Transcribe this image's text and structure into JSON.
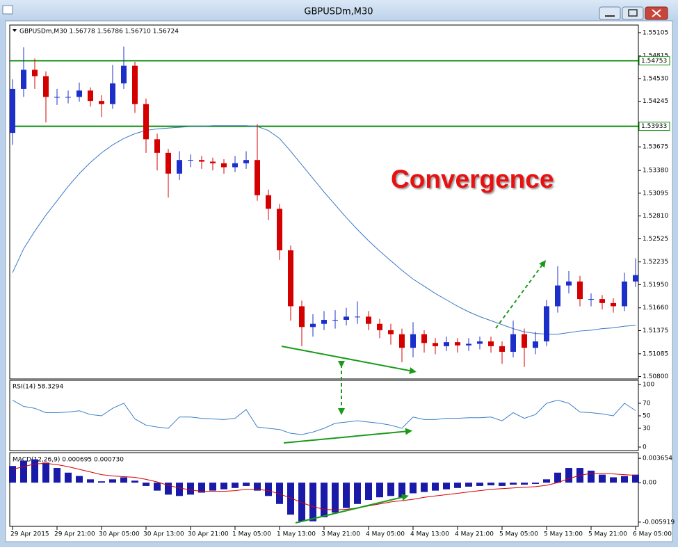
{
  "window_title": "GBPUSDm,M30",
  "chart_data": [
    {
      "type": "candlestick",
      "title": "GBPUSDm,M30  1.56778 1.56786 1.56710 1.56724",
      "annotation": "Convergence",
      "categories": [
        "29 Apr 2015",
        null,
        null,
        null,
        "29 Apr 21:00",
        null,
        null,
        null,
        "30 Apr 05:00",
        null,
        null,
        null,
        "30 Apr 13:00",
        null,
        null,
        null,
        "30 Apr 21:00",
        null,
        null,
        null,
        "1 May 05:00",
        null,
        null,
        null,
        "1 May 13:00",
        null,
        null,
        null,
        "3 May 21:00",
        null,
        null,
        null,
        "4 May 05:00",
        null,
        null,
        null,
        "4 May 13:00",
        null,
        null,
        null,
        "4 May 21:00",
        null,
        null,
        null,
        "5 May 05:00",
        null,
        null,
        null,
        "5 May 13:00",
        null,
        null,
        null,
        "5 May 21:00",
        null,
        null,
        null,
        "6 May 05:00"
      ],
      "open": [
        1.5385,
        1.544,
        1.5464,
        1.5456,
        1.543,
        1.543,
        1.543,
        1.5438,
        1.5425,
        1.5421,
        1.5447,
        1.5469,
        1.5421,
        1.5377,
        1.536,
        1.5334,
        1.5351,
        1.5351,
        1.5349,
        1.5347,
        1.5342,
        1.5347,
        1.5351,
        1.5307,
        1.529,
        1.5238,
        1.5168,
        1.5142,
        1.5146,
        1.5151,
        1.5151,
        1.5155,
        1.5155,
        1.5146,
        1.5138,
        1.5133,
        1.5116,
        1.5133,
        1.5122,
        1.5118,
        1.5123,
        1.5119,
        1.5121,
        1.5124,
        1.5118,
        1.5111,
        1.5133,
        1.5116,
        1.5124,
        1.5168,
        1.5194,
        1.5199,
        1.5177,
        1.5177,
        1.5172,
        1.5168,
        1.5199
      ],
      "high": [
        1.5452,
        1.5492,
        1.5478,
        1.5462,
        1.544,
        1.5438,
        1.5448,
        1.5442,
        1.5432,
        1.547,
        1.5493,
        1.5474,
        1.5428,
        1.5384,
        1.5365,
        1.5362,
        1.5358,
        1.5356,
        1.5354,
        1.5352,
        1.5356,
        1.5362,
        1.5396,
        1.5314,
        1.5296,
        1.5244,
        1.5175,
        1.5158,
        1.5162,
        1.5163,
        1.5166,
        1.5174,
        1.5162,
        1.5152,
        1.5146,
        1.514,
        1.5148,
        1.5138,
        1.5128,
        1.513,
        1.5128,
        1.5128,
        1.513,
        1.513,
        1.5124,
        1.515,
        1.514,
        1.5136,
        1.5176,
        1.5218,
        1.5212,
        1.5206,
        1.5184,
        1.5182,
        1.5178,
        1.521,
        1.5228
      ],
      "low": [
        1.537,
        1.543,
        1.544,
        1.5398,
        1.542,
        1.5422,
        1.5424,
        1.5418,
        1.5405,
        1.5415,
        1.544,
        1.541,
        1.536,
        1.5338,
        1.5304,
        1.5326,
        1.5342,
        1.534,
        1.5338,
        1.5334,
        1.5336,
        1.534,
        1.53,
        1.5276,
        1.5226,
        1.515,
        1.5118,
        1.513,
        1.5138,
        1.514,
        1.5144,
        1.5146,
        1.5138,
        1.5128,
        1.512,
        1.5098,
        1.5104,
        1.511,
        1.5108,
        1.5112,
        1.511,
        1.5112,
        1.5114,
        1.511,
        1.5096,
        1.5104,
        1.5092,
        1.5108,
        1.5118,
        1.516,
        1.5184,
        1.5168,
        1.5168,
        1.5164,
        1.516,
        1.5162,
        1.5192
      ],
      "close": [
        1.544,
        1.5464,
        1.5456,
        1.543,
        1.543,
        1.543,
        1.5438,
        1.5425,
        1.5421,
        1.5447,
        1.5469,
        1.5421,
        1.5377,
        1.536,
        1.5334,
        1.5351,
        1.5351,
        1.5349,
        1.5347,
        1.5342,
        1.5347,
        1.5351,
        1.5307,
        1.529,
        1.5238,
        1.5168,
        1.5142,
        1.5146,
        1.5151,
        1.5151,
        1.5155,
        1.5155,
        1.5146,
        1.5138,
        1.5133,
        1.5116,
        1.5133,
        1.5122,
        1.5118,
        1.5123,
        1.5119,
        1.5121,
        1.5124,
        1.5118,
        1.5111,
        1.5133,
        1.5116,
        1.5124,
        1.5168,
        1.5194,
        1.5199,
        1.5177,
        1.5177,
        1.5172,
        1.5168,
        1.5199,
        1.5207
      ],
      "up_color": "#1c2fc8",
      "down_color": "#d40000",
      "moving_average": {
        "color": "#3b78c4",
        "values": [
          1.521,
          1.524,
          1.5262,
          1.5282,
          1.53,
          1.5318,
          1.5334,
          1.5348,
          1.536,
          1.537,
          1.5378,
          1.5384,
          1.5388,
          1.539,
          1.5391,
          1.5392,
          1.5393,
          1.5393,
          1.5394,
          1.5394,
          1.5394,
          1.5394,
          1.5393,
          1.5388,
          1.5378,
          1.5362,
          1.5345,
          1.5328,
          1.5311,
          1.5295,
          1.5279,
          1.5264,
          1.525,
          1.5237,
          1.5225,
          1.5213,
          1.5202,
          1.5193,
          1.5184,
          1.5176,
          1.5168,
          1.5161,
          1.5155,
          1.515,
          1.5145,
          1.514,
          1.5136,
          1.5134,
          1.5133,
          1.5133,
          1.5135,
          1.5137,
          1.5138,
          1.514,
          1.5141,
          1.5143,
          1.5144
        ]
      },
      "levels": [
        1.54753,
        1.53933
      ],
      "level_color": "#0a8a0a",
      "ylim": [
        1.5077,
        1.552
      ],
      "yticks": [
        1.55105,
        1.54815,
        {
          "value": 1.5453,
          "label": "1.54530"
        },
        1.54245,
        1.53675,
        {
          "value": 1.5338,
          "label": "1.53380"
        },
        1.53095,
        {
          "value": 1.5281,
          "label": "1.52810"
        },
        1.52525,
        1.52235,
        {
          "value": 1.5195,
          "label": "1.51950"
        },
        {
          "value": 1.5166,
          "label": "1.51660"
        },
        1.51375,
        1.51085,
        {
          "value": 1.508,
          "label": "1.50800"
        }
      ]
    },
    {
      "type": "line",
      "title": "RSI(14) 58.3294",
      "color": "#3d7fc8",
      "values": [
        75,
        65,
        62,
        55,
        55,
        56,
        58,
        52,
        50,
        62,
        70,
        45,
        35,
        32,
        30,
        48,
        48,
        46,
        45,
        44,
        46,
        60,
        32,
        30,
        28,
        22,
        20,
        24,
        30,
        38,
        40,
        42,
        40,
        38,
        35,
        30,
        48,
        44,
        44,
        46,
        46,
        47,
        47,
        48,
        42,
        55,
        46,
        52,
        70,
        75,
        70,
        56,
        55,
        53,
        50,
        70,
        58.33
      ],
      "ylim": [
        -5.6,
        106.7
      ],
      "yticks": [
        100,
        70,
        50,
        30,
        0
      ]
    },
    {
      "type": "bar",
      "title": "MACD(12,26,9) 0.000695 0.000730",
      "color": "#1a1aa8",
      "values": [
        0.0025,
        0.0033,
        0.0035,
        0.003,
        0.0022,
        0.0015,
        0.001,
        0.0005,
        0.0002,
        0.0005,
        0.0008,
        0.0003,
        -0.0005,
        -0.0012,
        -0.0018,
        -0.002,
        -0.0018,
        -0.0015,
        -0.0012,
        -0.001,
        -0.0008,
        -0.0005,
        -0.0012,
        -0.002,
        -0.0032,
        -0.0048,
        -0.0058,
        -0.0058,
        -0.0052,
        -0.0045,
        -0.0038,
        -0.0032,
        -0.0026,
        -0.0022,
        -0.002,
        -0.0022,
        -0.0016,
        -0.0014,
        -0.0012,
        -0.001,
        -0.0008,
        -0.0006,
        -0.0005,
        -0.0004,
        -0.0005,
        -0.0003,
        -0.0003,
        -0.0002,
        0.0005,
        0.0015,
        0.0022,
        0.0022,
        0.0018,
        0.0012,
        0.0008,
        0.001,
        0.0012
      ],
      "signal": {
        "color": "#d40000",
        "values": [
          0.002,
          0.0024,
          0.0028,
          0.0029,
          0.0027,
          0.0024,
          0.002,
          0.0016,
          0.0012,
          0.001,
          0.0009,
          0.0008,
          0.0005,
          0.0001,
          -0.0004,
          -0.0008,
          -0.0011,
          -0.0013,
          -0.0013,
          -0.0013,
          -0.0012,
          -0.001,
          -0.001,
          -0.0012,
          -0.0017,
          -0.0023,
          -0.003,
          -0.0036,
          -0.004,
          -0.0041,
          -0.004,
          -0.0038,
          -0.0035,
          -0.0032,
          -0.0029,
          -0.0027,
          -0.0025,
          -0.0022,
          -0.002,
          -0.0018,
          -0.0016,
          -0.0014,
          -0.0012,
          -0.001,
          -0.0009,
          -0.0008,
          -0.0007,
          -0.0006,
          -0.0004,
          0.0,
          0.0006,
          0.0011,
          0.0014,
          0.0014,
          0.0013,
          0.0012,
          0.0011
        ]
      },
      "ylim": [
        -0.00656,
        0.0045
      ],
      "yticks": [
        0.003654,
        {
          "value": 0,
          "label": "0.00"
        },
        -0.005919
      ]
    }
  ]
}
